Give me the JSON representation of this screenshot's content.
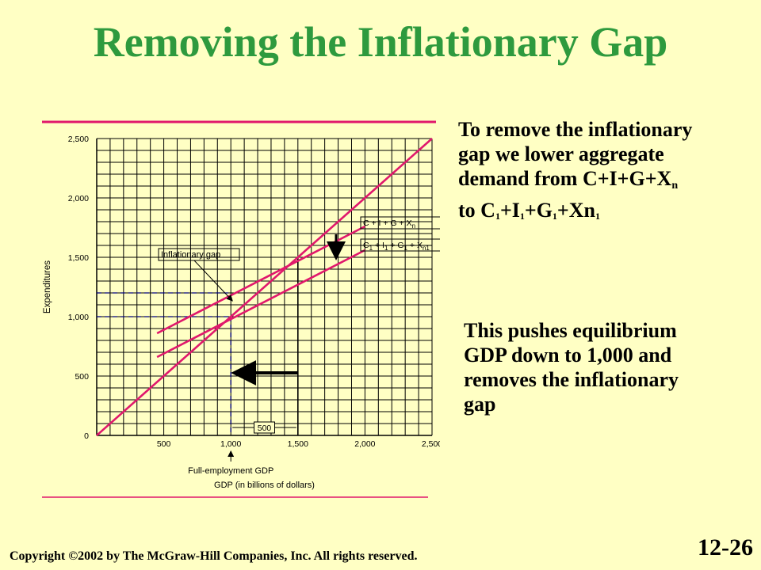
{
  "slide": {
    "title": "Removing the Inflationary Gap",
    "copyright": "Copyright ©2002 by The McGraw-Hill Companies, Inc.  All rights reserved.",
    "slide_number": "12-26"
  },
  "side_text_1": {
    "line1": "To remove the inflationary",
    "line2": "gap we lower aggregate",
    "line3_main": "demand from C+I+G+X",
    "line3_sub": "n",
    "line4": {
      "prefix": "to C",
      "sub1": "1",
      "plus_i": "+I",
      "sub2": "1",
      "plus_g": "+G",
      "sub3": "1",
      "plus_xn": "+Xn",
      "sub4": "1"
    }
  },
  "side_text_2": {
    "line1": "This pushes equilibrium",
    "line2": "GDP down to 1,000 and",
    "line3": "removes the inflationary",
    "line4": "gap"
  },
  "colors": {
    "background": "#ffffc4",
    "title": "#2e9a3e",
    "ae_lines": "#e0186c",
    "grid": "#000000",
    "dashed_guides": "#000080"
  },
  "chart_data": {
    "type": "line",
    "xlabel": "GDP (in billions of dollars)",
    "ylabel": "Expenditures",
    "xlim": [
      0,
      2500
    ],
    "ylim": [
      0,
      2500
    ],
    "x_ticks": [
      500,
      1000,
      1500,
      2000,
      2500
    ],
    "x_tick_labels": [
      "500",
      "1,000",
      "1,500",
      "2,000",
      "2,500"
    ],
    "y_ticks": [
      0,
      500,
      1000,
      1500,
      2000,
      2500
    ],
    "y_tick_labels": [
      "0",
      "500",
      "1,000",
      "1,500",
      "2,000",
      "2,500"
    ],
    "grid": true,
    "series": [
      {
        "name": "",
        "x": [
          0,
          2500
        ],
        "y": [
          0,
          2500
        ]
      },
      {
        "name": "C + I + G + X_n",
        "x": [
          450,
          2000
        ],
        "y": [
          860,
          1760
        ]
      },
      {
        "name": "C_1 + I_1 + G_1 + X_n1",
        "x": [
          450,
          2000
        ],
        "y": [
          660,
          1560
        ]
      }
    ],
    "legend_labels": [
      "C + I + G + X",
      "n",
      "C",
      "1",
      " + I",
      "1",
      " + G",
      "1",
      " + X",
      "n1"
    ],
    "annotations": {
      "inflationary_gap": "Inflationary gap",
      "full_employment": "Full-employment GDP",
      "gap_width": "500"
    },
    "guides": {
      "full_employment_gdp": 1000,
      "equilibrium_before": 1500,
      "inflationary_gap_top": 1200,
      "equilibrium_after": 1000
    }
  }
}
